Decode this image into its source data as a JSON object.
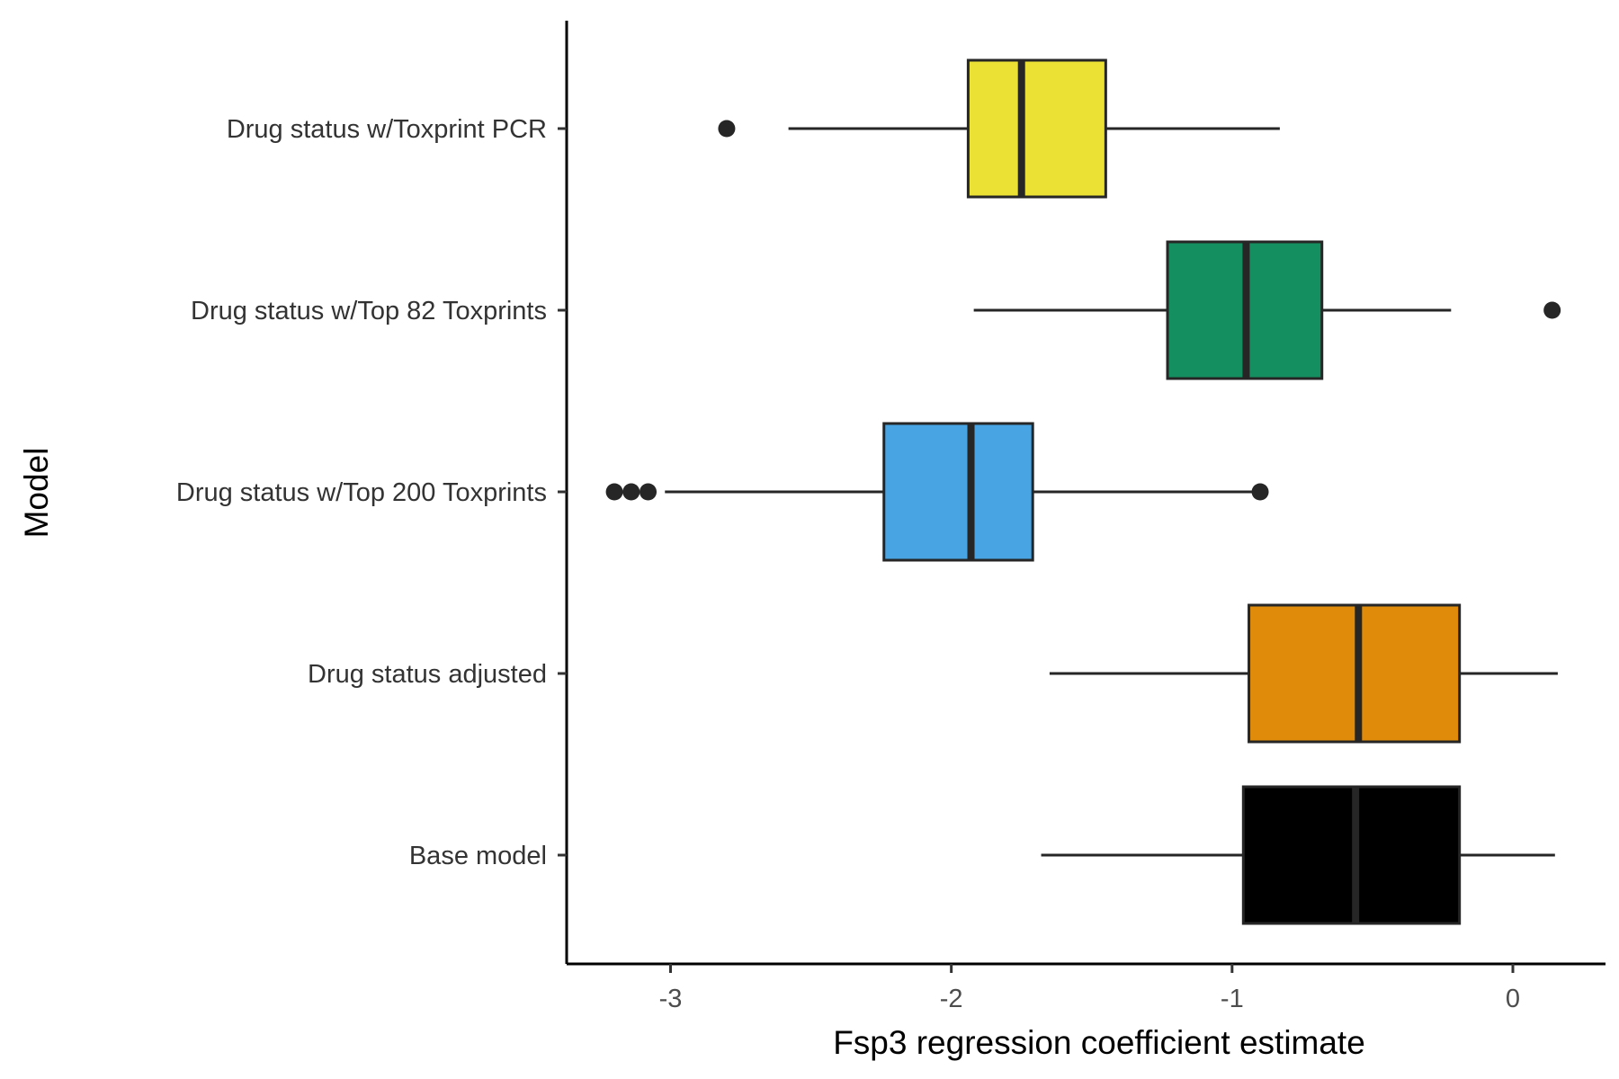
{
  "chart_data": {
    "type": "boxplot",
    "orientation": "horizontal",
    "xlabel": "Fsp3 regression coefficient estimate",
    "ylabel": "Model",
    "xlim": [
      -3.37,
      0.33
    ],
    "xticks": [
      {
        "value": -3,
        "label": "-3"
      },
      {
        "value": -2,
        "label": "-2"
      },
      {
        "value": -1,
        "label": "-1"
      },
      {
        "value": 0,
        "label": "0"
      }
    ],
    "grid": false,
    "legend": "none",
    "series": [
      {
        "label": "Drug status w/Toxprint PCR",
        "color": "#EBE134",
        "whisker_low": -2.58,
        "q1": -1.94,
        "median": -1.75,
        "q3": -1.45,
        "whisker_high": -0.83,
        "outliers": [
          -2.8
        ]
      },
      {
        "label": "Drug status w/Top 82 Toxprints",
        "color": "#149060",
        "whisker_low": -1.92,
        "q1": -1.23,
        "median": -0.95,
        "q3": -0.68,
        "whisker_high": -0.22,
        "outliers": [
          0.14
        ]
      },
      {
        "label": "Drug status w/Top 200 Toxprints",
        "color": "#48A4E2",
        "whisker_low": -3.02,
        "q1": -2.24,
        "median": -1.93,
        "q3": -1.71,
        "whisker_high": -0.9,
        "outliers": [
          -3.2,
          -3.14,
          -3.08,
          -0.9
        ]
      },
      {
        "label": "Drug status adjusted",
        "color": "#E08C0A",
        "whisker_low": -1.65,
        "q1": -0.94,
        "median": -0.55,
        "q3": -0.19,
        "whisker_high": 0.16,
        "outliers": []
      },
      {
        "label": "Base model",
        "color": "#000000",
        "whisker_low": -1.68,
        "q1": -0.96,
        "median": -0.56,
        "q3": -0.19,
        "whisker_high": 0.15,
        "outliers": []
      }
    ]
  }
}
